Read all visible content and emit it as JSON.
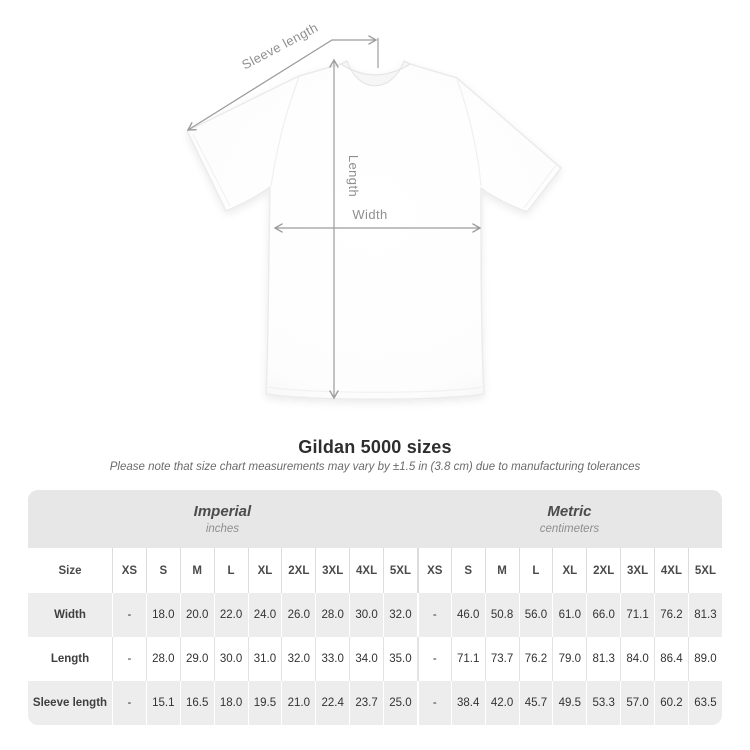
{
  "diagram": {
    "labels": {
      "sleeve_length": "Sleeve length",
      "length": "Length",
      "width": "Width"
    },
    "line_color": "#9c9c9c",
    "label_color": "#8f8f8f",
    "shirt_color": "#ffffff"
  },
  "chart_data": {
    "type": "table",
    "title": "Gildan 5000 sizes",
    "note": "Please note that size chart measurements may vary by ±1.5 in (3.8 cm) due to manufacturing tolerances",
    "corner_label": "Size",
    "sizes": [
      "XS",
      "S",
      "M",
      "L",
      "XL",
      "2XL",
      "3XL",
      "4XL",
      "5XL"
    ],
    "groups": [
      {
        "label": "Imperial",
        "unit": "inches"
      },
      {
        "label": "Metric",
        "unit": "centimeters"
      }
    ],
    "rows": [
      {
        "label": "Width",
        "imperial": [
          "-",
          "18.0",
          "20.0",
          "22.0",
          "24.0",
          "26.0",
          "28.0",
          "30.0",
          "32.0"
        ],
        "metric": [
          "-",
          "46.0",
          "50.8",
          "56.0",
          "61.0",
          "66.0",
          "71.1",
          "76.2",
          "81.3"
        ]
      },
      {
        "label": "Length",
        "imperial": [
          "-",
          "28.0",
          "29.0",
          "30.0",
          "31.0",
          "32.0",
          "33.0",
          "34.0",
          "35.0"
        ],
        "metric": [
          "-",
          "71.1",
          "73.7",
          "76.2",
          "79.0",
          "81.3",
          "84.0",
          "86.4",
          "89.0"
        ]
      },
      {
        "label": "Sleeve length",
        "imperial": [
          "-",
          "15.1",
          "16.5",
          "18.0",
          "19.5",
          "21.0",
          "22.4",
          "23.7",
          "25.0"
        ],
        "metric": [
          "-",
          "38.4",
          "42.0",
          "45.7",
          "49.5",
          "53.3",
          "57.0",
          "60.2",
          "63.5"
        ]
      }
    ]
  }
}
